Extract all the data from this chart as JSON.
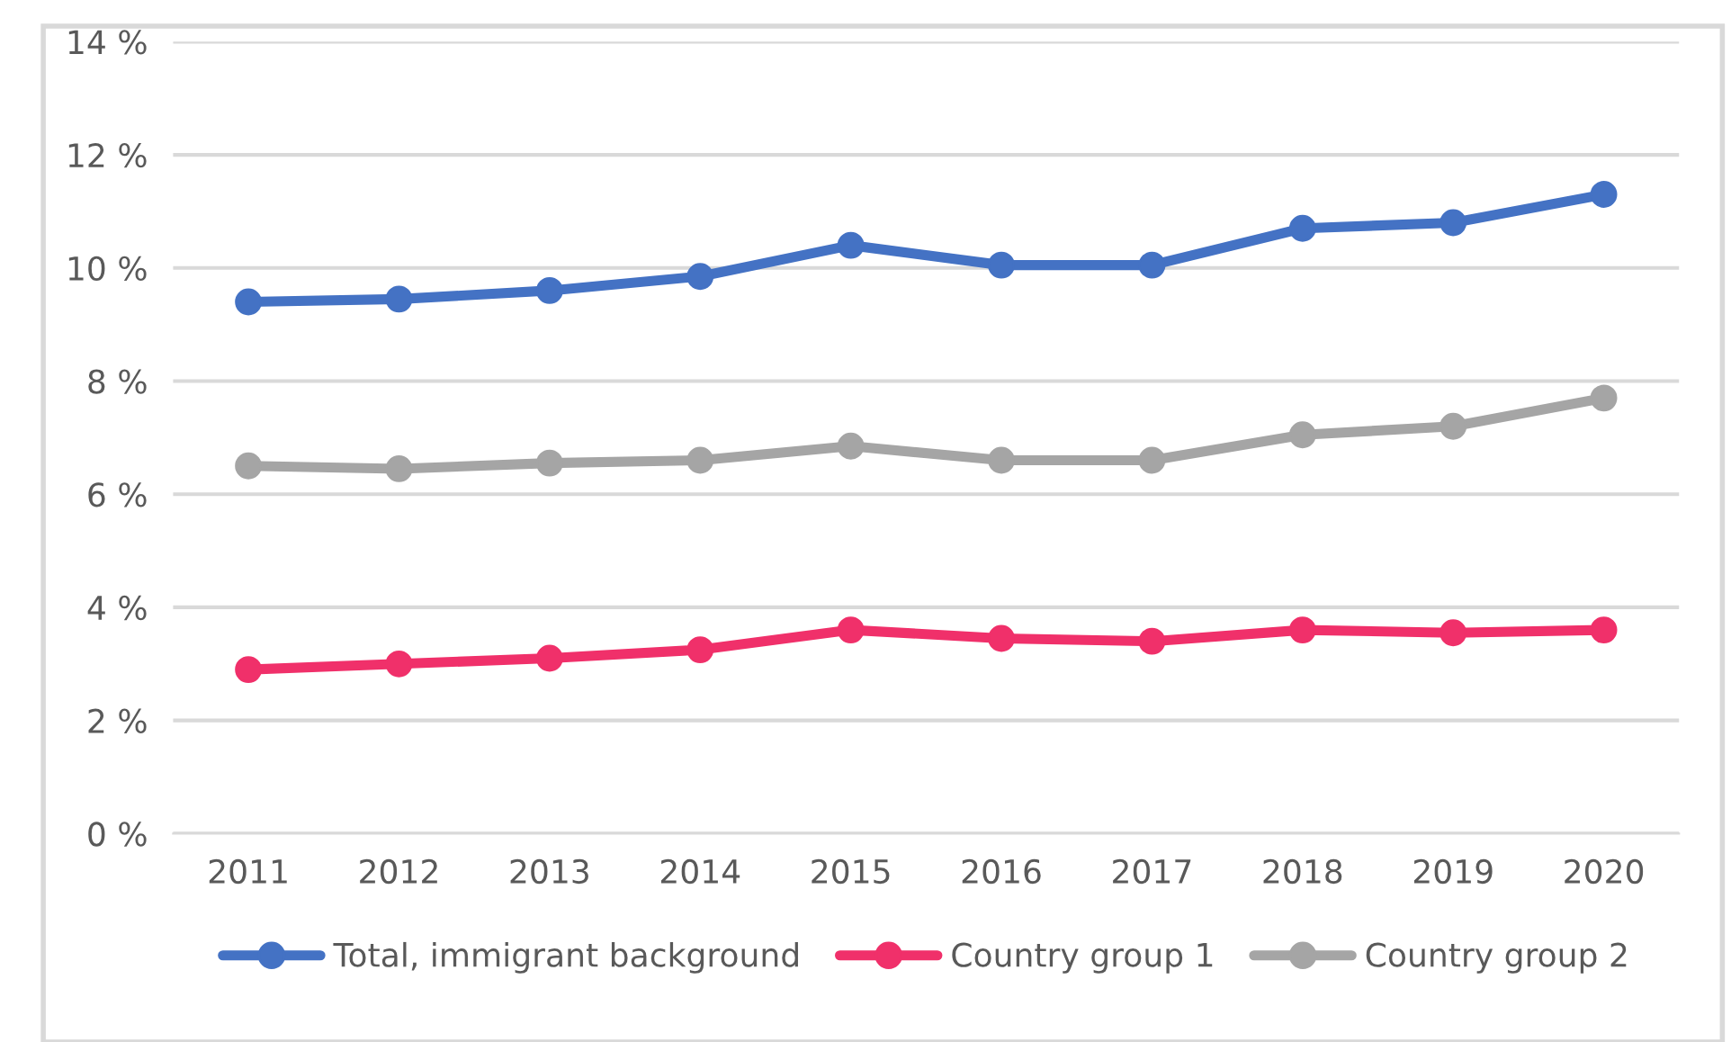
{
  "chart_data": {
    "type": "line",
    "categories": [
      "2011",
      "2012",
      "2013",
      "2014",
      "2015",
      "2016",
      "2017",
      "2018",
      "2019",
      "2020"
    ],
    "series": [
      {
        "name": "Total, immigrant background",
        "color": "#4472c4",
        "values": [
          9.4,
          9.45,
          9.6,
          9.85,
          10.4,
          10.05,
          10.05,
          10.7,
          10.8,
          11.3
        ]
      },
      {
        "name": "Country group 1",
        "color": "#f0306a",
        "values": [
          2.9,
          3.0,
          3.1,
          3.25,
          3.6,
          3.45,
          3.4,
          3.6,
          3.55,
          3.6
        ]
      },
      {
        "name": "Country group 2",
        "color": "#a5a5a5",
        "values": [
          6.5,
          6.45,
          6.55,
          6.6,
          6.85,
          6.6,
          6.6,
          7.05,
          7.2,
          7.7
        ]
      }
    ],
    "ylim": [
      0,
      14
    ],
    "yticks": [
      {
        "value": 0,
        "label": "0 %"
      },
      {
        "value": 2,
        "label": "2 %"
      },
      {
        "value": 4,
        "label": "4 %"
      },
      {
        "value": 6,
        "label": "6 %"
      },
      {
        "value": 8,
        "label": "8 %"
      },
      {
        "value": 10,
        "label": "10 %"
      },
      {
        "value": 12,
        "label": "12 %"
      },
      {
        "value": 14,
        "label": "14 %"
      }
    ],
    "grid": "y",
    "legend": "bottom",
    "marker": "circle",
    "line_style": "solid"
  }
}
